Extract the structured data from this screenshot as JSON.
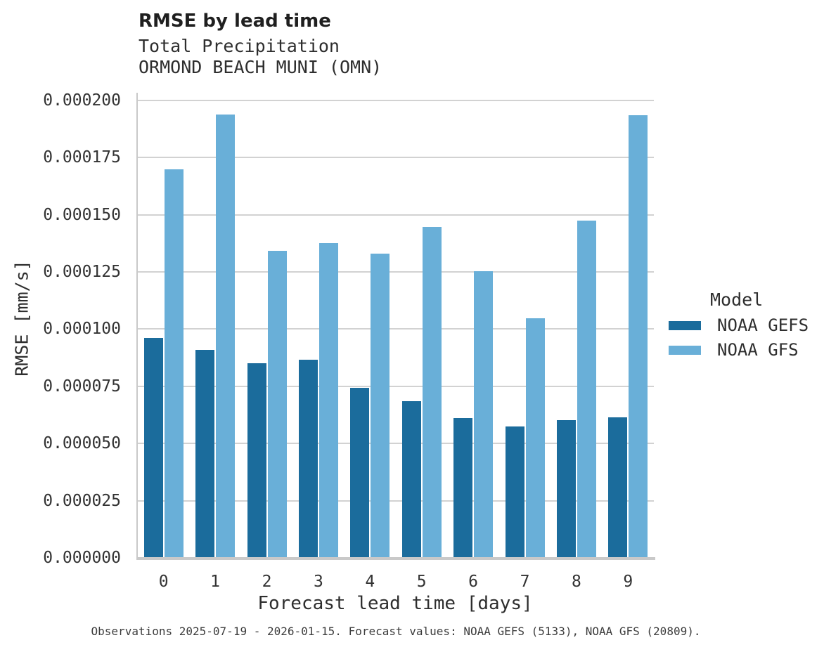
{
  "chart_data": {
    "type": "bar",
    "title": "RMSE by lead time",
    "subtitle": [
      "Total Precipitation",
      "ORMOND BEACH MUNI (OMN)"
    ],
    "xlabel": "Forecast lead time [days]",
    "ylabel": "RMSE [mm/s]",
    "categories": [
      "0",
      "1",
      "2",
      "3",
      "4",
      "5",
      "6",
      "7",
      "8",
      "9"
    ],
    "series": [
      {
        "name": "NOAA GEFS",
        "color": "#1b6c9c",
        "values": [
          9.62e-05,
          9.08e-05,
          8.5e-05,
          8.67e-05,
          7.44e-05,
          6.86e-05,
          6.11e-05,
          5.73e-05,
          6.01e-05,
          6.15e-05
        ]
      },
      {
        "name": "NOAA GFS",
        "color": "#69afd8",
        "values": [
          0.0001698,
          0.0001937,
          0.0001342,
          0.0001377,
          0.0001331,
          0.0001448,
          0.0001254,
          0.0001048,
          0.0001474,
          0.0001934
        ]
      }
    ],
    "ylim": [
      0,
      0.000203375
    ],
    "yticks": [
      0,
      2.5e-05,
      5e-05,
      7.5e-05,
      0.0001,
      0.000125,
      0.00015,
      0.000175,
      0.0002
    ],
    "ytick_labels": [
      "0.000000",
      "0.000025",
      "0.000050",
      "0.000075",
      "0.000100",
      "0.000125",
      "0.000150",
      "0.000175",
      "0.000200"
    ],
    "grid": true,
    "legend_title": "Model",
    "legend_position": "right",
    "caption": "Observations 2025-07-19 - 2026-01-15. Forecast values: NOAA GEFS (5133), NOAA GFS (20809)."
  },
  "style": {
    "grid_color": "#d2d2d2",
    "spine_color": "#c9c9c9",
    "background": "#ffffff"
  }
}
